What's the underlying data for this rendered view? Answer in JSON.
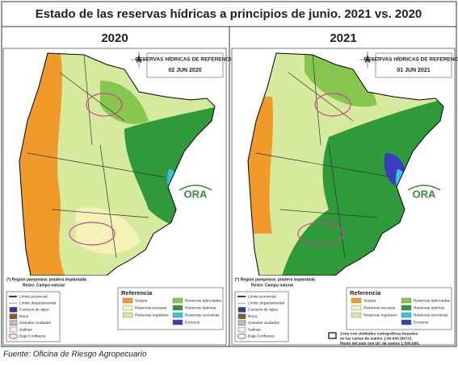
{
  "title": "Estado de las reservas hídricas a principios de junio. 2021 vs. 2020",
  "panels": [
    {
      "year": "2020",
      "map_title": "RESERVAS HÍDRICAS DE REFERENCIA",
      "date": "02 JUN 2020",
      "logo": "ORA",
      "note": [
        "(*) Región pampeana: pradera implantada",
        "Resto: Campo natural"
      ],
      "layers": [
        "Límite provincial",
        "Límite departamental",
        "Cuerpos de agua",
        "Roca",
        "Grandes ciudades",
        "Salinas",
        "Baja Confianza"
      ],
      "legend_title": "Referencia",
      "legend": [
        "Sequía",
        "Reservas escasas",
        "Reservas regulares",
        "Reservas adecuadas",
        "Reservas óptimas",
        "Reservas excesivas",
        "Excesos"
      ]
    },
    {
      "year": "2021",
      "map_title": "RESERVAS HÍDRICAS DE REFERENCIA",
      "date": "01 JUN 2021",
      "logo": "ORA",
      "note": [
        "(*) Región pampeana: pradera implantada",
        "Resto: Campo natural"
      ],
      "layers": [
        "Límite provincial",
        "Límite departamental",
        "Cuerpos de agua",
        "Roca",
        "Grandes ciudades",
        "Salinas",
        "Baja Confianza"
      ],
      "legend_title": "Referencia",
      "legend": [
        "Sequía",
        "Reservas escasas",
        "Reservas regulares",
        "Reservas adecuadas",
        "Reservas óptimas",
        "Reservas excesivas",
        "Excesos"
      ],
      "zone_note": [
        "Zona con Unidades cartográficas basadas",
        "en las cartas de suelos 1:50.000 (INTA).",
        "Resto del país con UC de suelos 1:500.000."
      ]
    }
  ],
  "source": "Fuente: Oficina de Riesgo Agropecuario"
}
